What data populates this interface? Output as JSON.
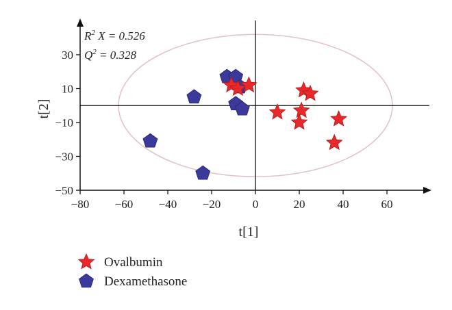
{
  "chart_data": {
    "type": "scatter",
    "title": "",
    "xlabel": "t[1]",
    "ylabel": "t[2]",
    "xlim": [
      -80,
      80
    ],
    "ylim": [
      -50,
      50
    ],
    "x_ticks": [
      -80,
      -60,
      -40,
      -20,
      0,
      20,
      40,
      60
    ],
    "y_ticks": [
      -50,
      -30,
      -10,
      10,
      30
    ],
    "grid": false,
    "legend_position": "bottom-left",
    "annotations": {
      "r2x_label": "R",
      "r2x_sup": "2",
      "r2x_rest": " X = 0.526",
      "q2_label": "Q",
      "q2_sup": "2",
      "q2_rest": " = 0.328"
    },
    "ellipse": {
      "center": [
        0,
        0
      ],
      "radii": [
        62.5,
        42
      ]
    },
    "series": [
      {
        "name": "Ovalbumin",
        "marker": "star",
        "color": "#e8282a",
        "points": [
          [
            -11,
            12
          ],
          [
            -8,
            10
          ],
          [
            -3,
            12
          ],
          [
            10,
            -4
          ],
          [
            21,
            -3
          ],
          [
            22,
            9
          ],
          [
            25,
            7
          ],
          [
            20,
            -10
          ],
          [
            38,
            -8
          ],
          [
            36,
            -22
          ]
        ]
      },
      {
        "name": "Dexamethasone",
        "marker": "pentagon",
        "color": "#3b3a9a",
        "points": [
          [
            -13,
            17
          ],
          [
            -9,
            17
          ],
          [
            -7,
            11
          ],
          [
            -9,
            1
          ],
          [
            -6,
            -2
          ],
          [
            -28,
            5
          ],
          [
            -48,
            -21
          ],
          [
            -24,
            -40
          ]
        ]
      }
    ]
  }
}
